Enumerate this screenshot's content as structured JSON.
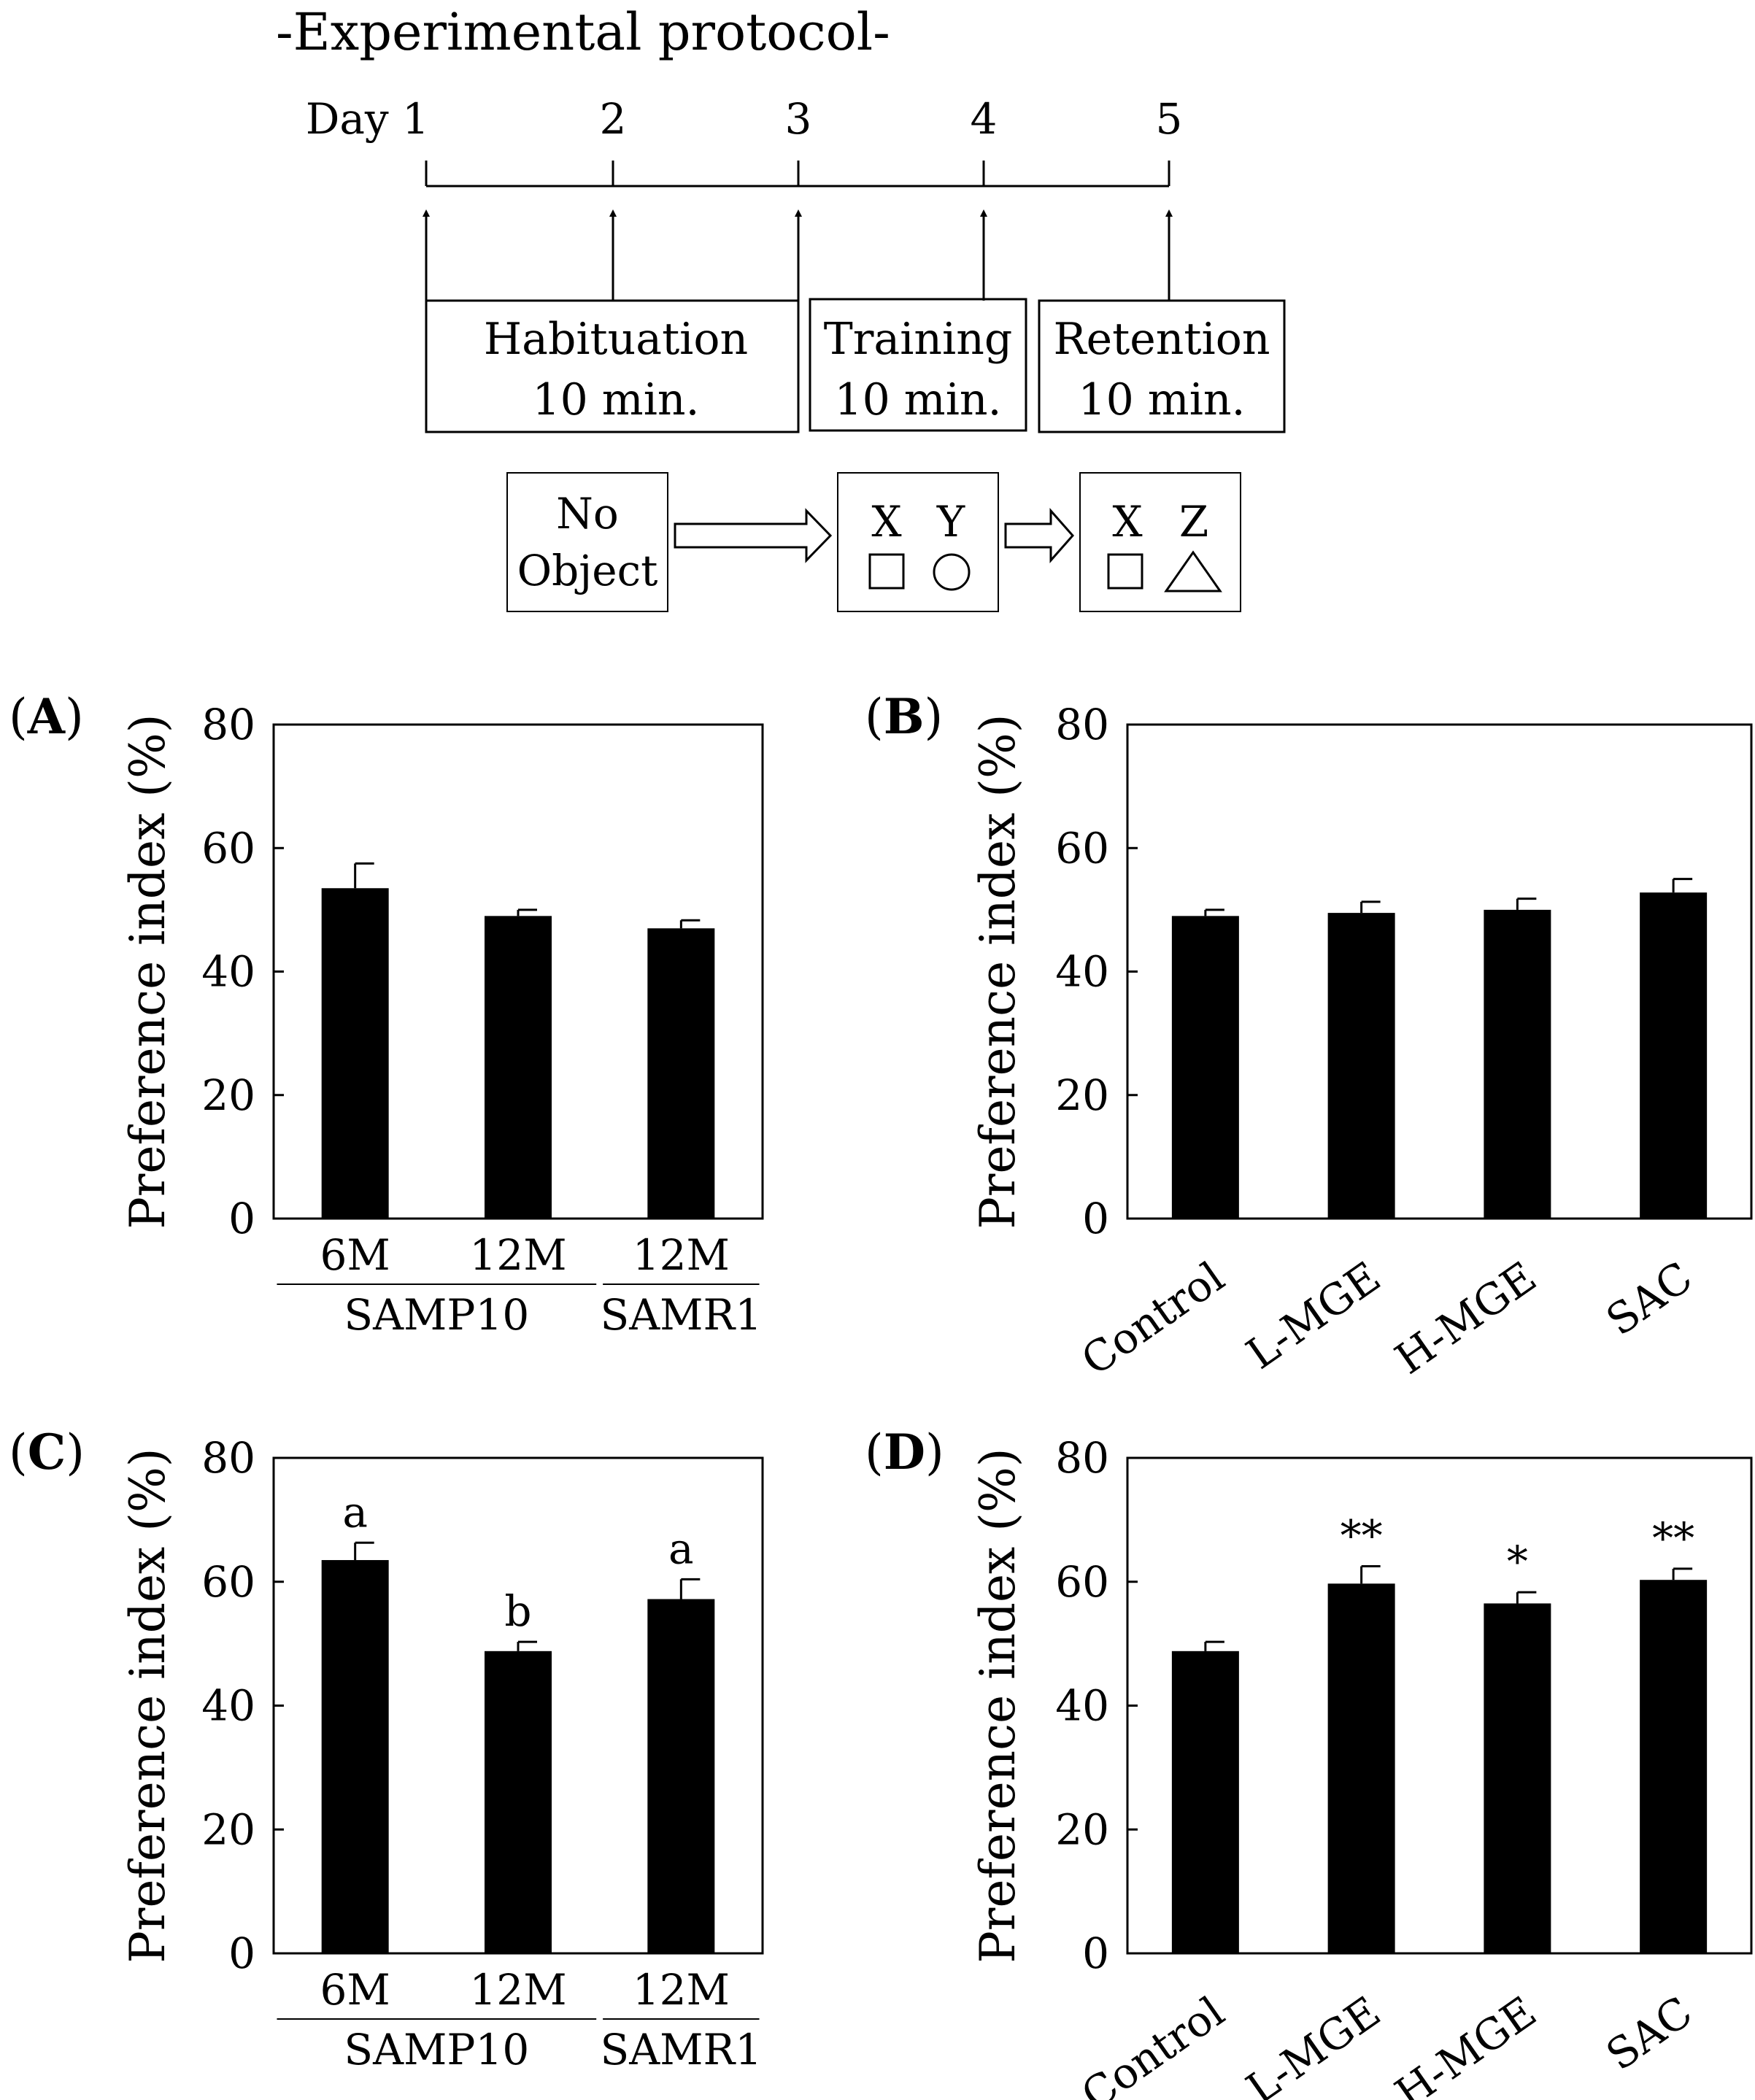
{
  "protocol": {
    "title": "-Experimental protocol-",
    "days": [
      "Day 1",
      "2",
      "3",
      "4",
      "5"
    ],
    "phases": [
      {
        "name": "Habituation",
        "duration": "10 min."
      },
      {
        "name": "Training",
        "duration": "10 min."
      },
      {
        "name": "Retention",
        "duration": "10 min."
      }
    ],
    "objects": {
      "habituation": [
        "No",
        "Object"
      ],
      "training": [
        "X",
        "Y"
      ],
      "retention": [
        "X",
        "Z"
      ]
    }
  },
  "chart_data": [
    {
      "panel": "A",
      "type": "bar",
      "ylabel": "Preference index (%)",
      "ylim": [
        0,
        80
      ],
      "yticks": [
        0,
        20,
        40,
        60,
        80
      ],
      "categories": [
        "6M",
        "12M",
        "12M"
      ],
      "groups": [
        {
          "label": "SAMP10",
          "span": [
            0,
            1
          ]
        },
        {
          "label": "SAMR1",
          "span": [
            2,
            2
          ]
        }
      ],
      "values": [
        53.5,
        49,
        47
      ],
      "errors": [
        4,
        1,
        1.3
      ],
      "annotations": [
        "",
        "",
        ""
      ]
    },
    {
      "panel": "B",
      "type": "bar",
      "ylabel": "Preference index (%)",
      "ylim": [
        0,
        80
      ],
      "yticks": [
        0,
        20,
        40,
        60,
        80
      ],
      "categories": [
        "Control",
        "L-MGE",
        "H-MGE",
        "SAC"
      ],
      "values": [
        49,
        49.5,
        50,
        52.8
      ],
      "errors": [
        1,
        1.8,
        1.8,
        2.2
      ],
      "annotations": [
        "",
        "",
        "",
        ""
      ]
    },
    {
      "panel": "C",
      "type": "bar",
      "ylabel": "Preference index (%)",
      "ylim": [
        0,
        80
      ],
      "yticks": [
        0,
        20,
        40,
        60,
        80
      ],
      "categories": [
        "6M",
        "12M",
        "12M"
      ],
      "groups": [
        {
          "label": "SAMP10",
          "span": [
            0,
            1
          ]
        },
        {
          "label": "SAMR1",
          "span": [
            2,
            2
          ]
        }
      ],
      "values": [
        63.5,
        48.8,
        57.2
      ],
      "errors": [
        2.8,
        1.5,
        3.2
      ],
      "annotations": [
        "a",
        "b",
        "a"
      ]
    },
    {
      "panel": "D",
      "type": "bar",
      "ylabel": "Preference index (%)",
      "ylim": [
        0,
        80
      ],
      "yticks": [
        0,
        20,
        40,
        60,
        80
      ],
      "categories": [
        "Control",
        "L-MGE",
        "H-MGE",
        "SAC"
      ],
      "values": [
        48.8,
        59.7,
        56.5,
        60.3
      ],
      "errors": [
        1.5,
        2.8,
        1.8,
        1.8
      ],
      "annotations": [
        "",
        "**",
        "*",
        "**"
      ]
    }
  ]
}
